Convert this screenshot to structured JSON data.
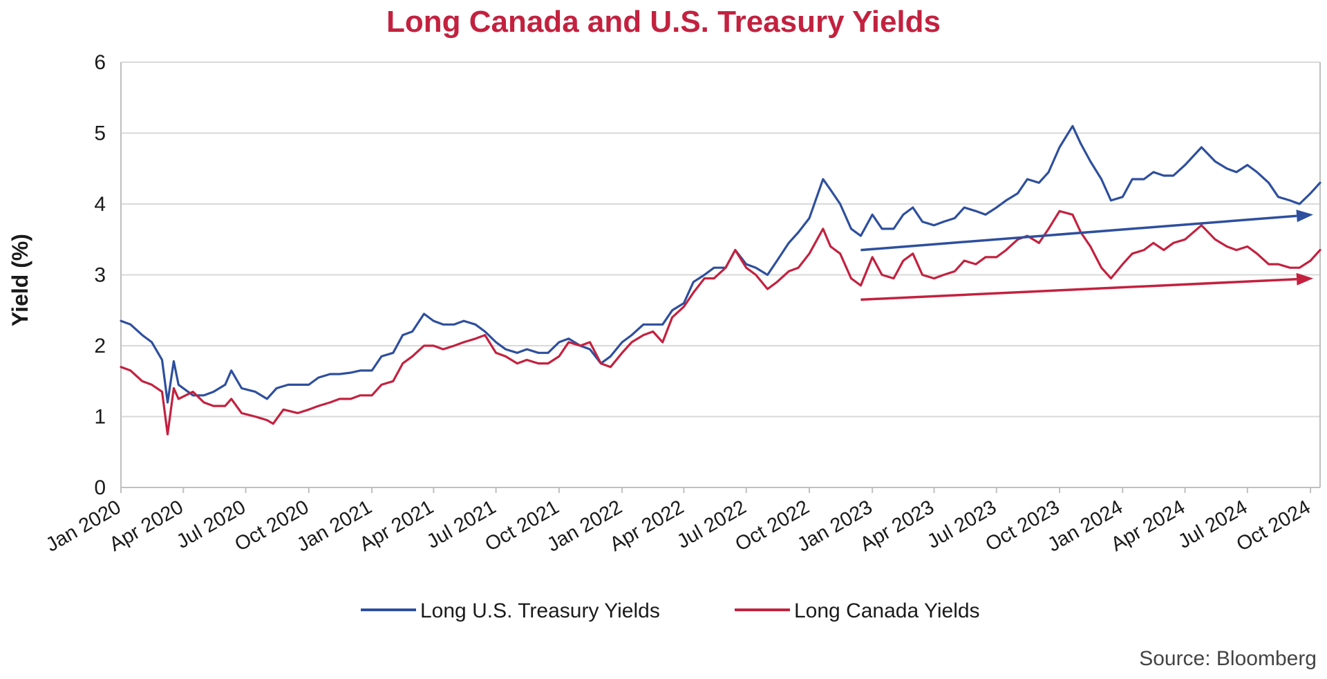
{
  "chart_data": {
    "type": "line",
    "title": "Long Canada and U.S. Treasury Yields",
    "ylabel": "Yield (%)",
    "xlabel": "",
    "ylim": [
      0,
      6
    ],
    "xlim": [
      "2020-01-01",
      "2024-10-15"
    ],
    "yticks": [
      "0",
      "1",
      "2",
      "3",
      "4",
      "5",
      "6"
    ],
    "xticks": [
      {
        "label": "Jan 2020",
        "date": "2020-01-01"
      },
      {
        "label": "Apr 2020",
        "date": "2020-04-01"
      },
      {
        "label": "Jul 2020",
        "date": "2020-07-01"
      },
      {
        "label": "Oct 2020",
        "date": "2020-10-01"
      },
      {
        "label": "Jan 2021",
        "date": "2021-01-01"
      },
      {
        "label": "Apr 2021",
        "date": "2021-04-01"
      },
      {
        "label": "Jul 2021",
        "date": "2021-07-01"
      },
      {
        "label": "Oct 2021",
        "date": "2021-10-01"
      },
      {
        "label": "Jan 2022",
        "date": "2022-01-01"
      },
      {
        "label": "Apr 2022",
        "date": "2022-04-01"
      },
      {
        "label": "Jul 2022",
        "date": "2022-07-01"
      },
      {
        "label": "Oct 2022",
        "date": "2022-10-01"
      },
      {
        "label": "Jan 2023",
        "date": "2023-01-01"
      },
      {
        "label": "Apr 2023",
        "date": "2023-04-01"
      },
      {
        "label": "Jul 2023",
        "date": "2023-07-01"
      },
      {
        "label": "Oct 2023",
        "date": "2023-10-01"
      },
      {
        "label": "Jan 2024",
        "date": "2024-01-01"
      },
      {
        "label": "Apr 2024",
        "date": "2024-04-01"
      },
      {
        "label": "Jul 2024",
        "date": "2024-07-01"
      },
      {
        "label": "Oct 2024",
        "date": "2024-10-01"
      }
    ],
    "grid": true,
    "legend_position": "bottom-center",
    "series": [
      {
        "name": "Long U.S. Treasury Yields",
        "color": "#2e4f9e",
        "points": [
          [
            "2020-01-01",
            2.35
          ],
          [
            "2020-01-15",
            2.3
          ],
          [
            "2020-02-01",
            2.15
          ],
          [
            "2020-02-15",
            2.05
          ],
          [
            "2020-03-01",
            1.8
          ],
          [
            "2020-03-09",
            1.2
          ],
          [
            "2020-03-18",
            1.78
          ],
          [
            "2020-03-25",
            1.45
          ],
          [
            "2020-04-15",
            1.3
          ],
          [
            "2020-05-01",
            1.3
          ],
          [
            "2020-05-15",
            1.35
          ],
          [
            "2020-06-01",
            1.45
          ],
          [
            "2020-06-10",
            1.65
          ],
          [
            "2020-06-25",
            1.4
          ],
          [
            "2020-07-15",
            1.35
          ],
          [
            "2020-08-01",
            1.25
          ],
          [
            "2020-08-15",
            1.4
          ],
          [
            "2020-09-01",
            1.45
          ],
          [
            "2020-09-15",
            1.45
          ],
          [
            "2020-10-01",
            1.45
          ],
          [
            "2020-10-15",
            1.55
          ],
          [
            "2020-11-01",
            1.6
          ],
          [
            "2020-11-15",
            1.6
          ],
          [
            "2020-12-01",
            1.62
          ],
          [
            "2020-12-15",
            1.65
          ],
          [
            "2021-01-01",
            1.65
          ],
          [
            "2021-01-15",
            1.85
          ],
          [
            "2021-02-01",
            1.9
          ],
          [
            "2021-02-15",
            2.15
          ],
          [
            "2021-03-01",
            2.2
          ],
          [
            "2021-03-18",
            2.45
          ],
          [
            "2021-04-01",
            2.35
          ],
          [
            "2021-04-15",
            2.3
          ],
          [
            "2021-05-01",
            2.3
          ],
          [
            "2021-05-15",
            2.35
          ],
          [
            "2021-06-01",
            2.3
          ],
          [
            "2021-06-15",
            2.2
          ],
          [
            "2021-07-01",
            2.05
          ],
          [
            "2021-07-15",
            1.95
          ],
          [
            "2021-08-01",
            1.9
          ],
          [
            "2021-08-15",
            1.95
          ],
          [
            "2021-09-01",
            1.9
          ],
          [
            "2021-09-15",
            1.9
          ],
          [
            "2021-10-01",
            2.05
          ],
          [
            "2021-10-15",
            2.1
          ],
          [
            "2021-11-01",
            2.0
          ],
          [
            "2021-11-15",
            1.95
          ],
          [
            "2021-12-01",
            1.75
          ],
          [
            "2021-12-15",
            1.85
          ],
          [
            "2022-01-01",
            2.05
          ],
          [
            "2022-01-15",
            2.15
          ],
          [
            "2022-02-01",
            2.3
          ],
          [
            "2022-02-15",
            2.3
          ],
          [
            "2022-03-01",
            2.3
          ],
          [
            "2022-03-15",
            2.5
          ],
          [
            "2022-04-01",
            2.6
          ],
          [
            "2022-04-15",
            2.9
          ],
          [
            "2022-05-01",
            3.0
          ],
          [
            "2022-05-15",
            3.1
          ],
          [
            "2022-06-01",
            3.1
          ],
          [
            "2022-06-15",
            3.35
          ],
          [
            "2022-07-01",
            3.15
          ],
          [
            "2022-07-15",
            3.1
          ],
          [
            "2022-08-01",
            3.0
          ],
          [
            "2022-08-15",
            3.2
          ],
          [
            "2022-09-01",
            3.45
          ],
          [
            "2022-09-15",
            3.6
          ],
          [
            "2022-10-01",
            3.8
          ],
          [
            "2022-10-21",
            4.35
          ],
          [
            "2022-11-01",
            4.2
          ],
          [
            "2022-11-15",
            4.0
          ],
          [
            "2022-12-01",
            3.65
          ],
          [
            "2022-12-15",
            3.55
          ],
          [
            "2023-01-01",
            3.85
          ],
          [
            "2023-01-15",
            3.65
          ],
          [
            "2023-02-01",
            3.65
          ],
          [
            "2023-02-15",
            3.85
          ],
          [
            "2023-03-01",
            3.95
          ],
          [
            "2023-03-15",
            3.75
          ],
          [
            "2023-04-01",
            3.7
          ],
          [
            "2023-04-15",
            3.75
          ],
          [
            "2023-05-01",
            3.8
          ],
          [
            "2023-05-15",
            3.95
          ],
          [
            "2023-06-01",
            3.9
          ],
          [
            "2023-06-15",
            3.85
          ],
          [
            "2023-07-01",
            3.95
          ],
          [
            "2023-07-15",
            4.05
          ],
          [
            "2023-08-01",
            4.15
          ],
          [
            "2023-08-15",
            4.35
          ],
          [
            "2023-09-01",
            4.3
          ],
          [
            "2023-09-15",
            4.45
          ],
          [
            "2023-10-01",
            4.8
          ],
          [
            "2023-10-20",
            5.1
          ],
          [
            "2023-11-01",
            4.85
          ],
          [
            "2023-11-15",
            4.6
          ],
          [
            "2023-12-01",
            4.35
          ],
          [
            "2023-12-15",
            4.05
          ],
          [
            "2024-01-01",
            4.1
          ],
          [
            "2024-01-15",
            4.35
          ],
          [
            "2024-02-01",
            4.35
          ],
          [
            "2024-02-15",
            4.45
          ],
          [
            "2024-03-01",
            4.4
          ],
          [
            "2024-03-15",
            4.4
          ],
          [
            "2024-04-01",
            4.55
          ],
          [
            "2024-04-25",
            4.8
          ],
          [
            "2024-05-15",
            4.6
          ],
          [
            "2024-06-01",
            4.5
          ],
          [
            "2024-06-15",
            4.45
          ],
          [
            "2024-07-01",
            4.55
          ],
          [
            "2024-07-15",
            4.45
          ],
          [
            "2024-08-01",
            4.3
          ],
          [
            "2024-08-15",
            4.1
          ],
          [
            "2024-09-01",
            4.05
          ],
          [
            "2024-09-15",
            4.0
          ],
          [
            "2024-10-01",
            4.15
          ],
          [
            "2024-10-15",
            4.3
          ]
        ]
      },
      {
        "name": "Long Canada Yields",
        "color": "#c3213f",
        "points": [
          [
            "2020-01-01",
            1.7
          ],
          [
            "2020-01-15",
            1.65
          ],
          [
            "2020-02-01",
            1.5
          ],
          [
            "2020-02-15",
            1.45
          ],
          [
            "2020-03-01",
            1.35
          ],
          [
            "2020-03-09",
            0.75
          ],
          [
            "2020-03-18",
            1.4
          ],
          [
            "2020-03-25",
            1.25
          ],
          [
            "2020-04-15",
            1.35
          ],
          [
            "2020-05-01",
            1.2
          ],
          [
            "2020-05-15",
            1.15
          ],
          [
            "2020-06-01",
            1.15
          ],
          [
            "2020-06-10",
            1.25
          ],
          [
            "2020-06-25",
            1.05
          ],
          [
            "2020-07-15",
            1.0
          ],
          [
            "2020-08-01",
            0.95
          ],
          [
            "2020-08-10",
            0.9
          ],
          [
            "2020-08-25",
            1.1
          ],
          [
            "2020-09-15",
            1.05
          ],
          [
            "2020-10-01",
            1.1
          ],
          [
            "2020-10-15",
            1.15
          ],
          [
            "2020-11-01",
            1.2
          ],
          [
            "2020-11-15",
            1.25
          ],
          [
            "2020-12-01",
            1.25
          ],
          [
            "2020-12-15",
            1.3
          ],
          [
            "2021-01-01",
            1.3
          ],
          [
            "2021-01-15",
            1.45
          ],
          [
            "2021-02-01",
            1.5
          ],
          [
            "2021-02-15",
            1.75
          ],
          [
            "2021-03-01",
            1.85
          ],
          [
            "2021-03-18",
            2.0
          ],
          [
            "2021-04-01",
            2.0
          ],
          [
            "2021-04-15",
            1.95
          ],
          [
            "2021-05-01",
            2.0
          ],
          [
            "2021-05-15",
            2.05
          ],
          [
            "2021-06-01",
            2.1
          ],
          [
            "2021-06-15",
            2.15
          ],
          [
            "2021-07-01",
            1.9
          ],
          [
            "2021-07-15",
            1.85
          ],
          [
            "2021-08-01",
            1.75
          ],
          [
            "2021-08-15",
            1.8
          ],
          [
            "2021-09-01",
            1.75
          ],
          [
            "2021-09-15",
            1.75
          ],
          [
            "2021-10-01",
            1.85
          ],
          [
            "2021-10-15",
            2.05
          ],
          [
            "2021-11-01",
            2.0
          ],
          [
            "2021-11-15",
            2.05
          ],
          [
            "2021-12-01",
            1.75
          ],
          [
            "2021-12-15",
            1.7
          ],
          [
            "2022-01-01",
            1.9
          ],
          [
            "2022-01-15",
            2.05
          ],
          [
            "2022-02-01",
            2.15
          ],
          [
            "2022-02-15",
            2.2
          ],
          [
            "2022-03-01",
            2.05
          ],
          [
            "2022-03-15",
            2.4
          ],
          [
            "2022-04-01",
            2.55
          ],
          [
            "2022-04-15",
            2.75
          ],
          [
            "2022-05-01",
            2.95
          ],
          [
            "2022-05-15",
            2.95
          ],
          [
            "2022-06-01",
            3.1
          ],
          [
            "2022-06-15",
            3.35
          ],
          [
            "2022-07-01",
            3.1
          ],
          [
            "2022-07-15",
            3.0
          ],
          [
            "2022-08-01",
            2.8
          ],
          [
            "2022-08-15",
            2.9
          ],
          [
            "2022-09-01",
            3.05
          ],
          [
            "2022-09-15",
            3.1
          ],
          [
            "2022-10-01",
            3.3
          ],
          [
            "2022-10-21",
            3.65
          ],
          [
            "2022-11-01",
            3.4
          ],
          [
            "2022-11-15",
            3.3
          ],
          [
            "2022-12-01",
            2.95
          ],
          [
            "2022-12-15",
            2.85
          ],
          [
            "2023-01-01",
            3.25
          ],
          [
            "2023-01-15",
            3.0
          ],
          [
            "2023-02-01",
            2.95
          ],
          [
            "2023-02-15",
            3.2
          ],
          [
            "2023-03-01",
            3.3
          ],
          [
            "2023-03-15",
            3.0
          ],
          [
            "2023-04-01",
            2.95
          ],
          [
            "2023-04-15",
            3.0
          ],
          [
            "2023-05-01",
            3.05
          ],
          [
            "2023-05-15",
            3.2
          ],
          [
            "2023-06-01",
            3.15
          ],
          [
            "2023-06-15",
            3.25
          ],
          [
            "2023-07-01",
            3.25
          ],
          [
            "2023-07-15",
            3.35
          ],
          [
            "2023-08-01",
            3.5
          ],
          [
            "2023-08-15",
            3.55
          ],
          [
            "2023-09-01",
            3.45
          ],
          [
            "2023-09-15",
            3.65
          ],
          [
            "2023-10-01",
            3.9
          ],
          [
            "2023-10-20",
            3.85
          ],
          [
            "2023-11-01",
            3.6
          ],
          [
            "2023-11-15",
            3.4
          ],
          [
            "2023-12-01",
            3.1
          ],
          [
            "2023-12-15",
            2.95
          ],
          [
            "2024-01-01",
            3.15
          ],
          [
            "2024-01-15",
            3.3
          ],
          [
            "2024-02-01",
            3.35
          ],
          [
            "2024-02-15",
            3.45
          ],
          [
            "2024-03-01",
            3.35
          ],
          [
            "2024-03-15",
            3.45
          ],
          [
            "2024-04-01",
            3.5
          ],
          [
            "2024-04-25",
            3.7
          ],
          [
            "2024-05-15",
            3.5
          ],
          [
            "2024-06-01",
            3.4
          ],
          [
            "2024-06-15",
            3.35
          ],
          [
            "2024-07-01",
            3.4
          ],
          [
            "2024-07-15",
            3.3
          ],
          [
            "2024-08-01",
            3.15
          ],
          [
            "2024-08-15",
            3.15
          ],
          [
            "2024-09-01",
            3.1
          ],
          [
            "2024-09-15",
            3.1
          ],
          [
            "2024-10-01",
            3.2
          ],
          [
            "2024-10-15",
            3.35
          ]
        ]
      }
    ],
    "annotations": [
      {
        "type": "arrow",
        "color": "#2e4f9e",
        "from": [
          "2022-12-15",
          3.35
        ],
        "to": [
          "2024-10-05",
          3.85
        ]
      },
      {
        "type": "arrow",
        "color": "#c3213f",
        "from": [
          "2022-12-15",
          2.65
        ],
        "to": [
          "2024-10-05",
          2.95
        ]
      }
    ],
    "source": "Source: Bloomberg",
    "colors": {
      "title": "#c3213f",
      "grid": "#d9d9d9",
      "axis": "#bfbfbf"
    }
  }
}
